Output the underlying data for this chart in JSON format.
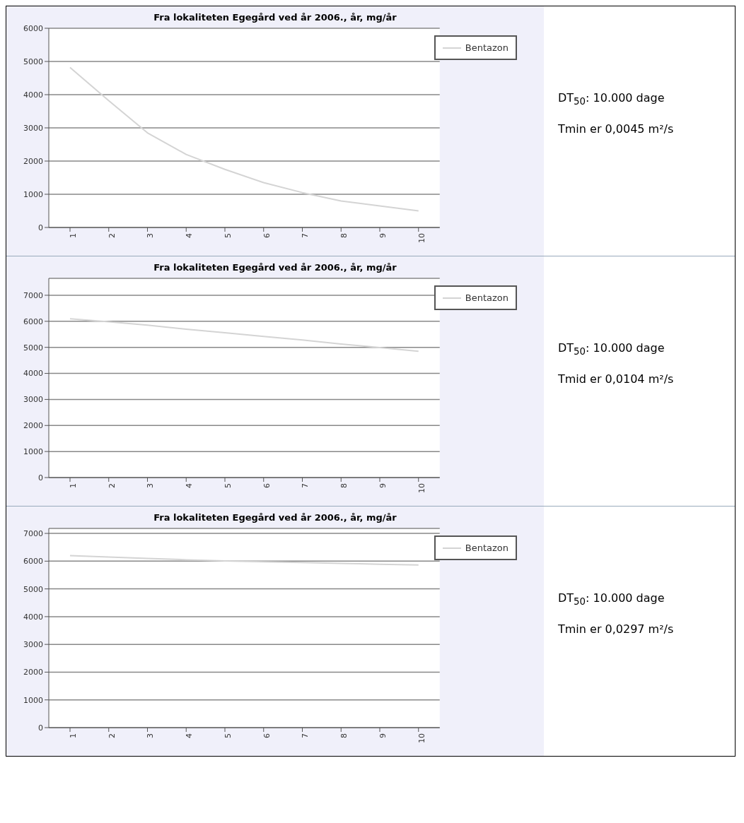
{
  "chart_data": [
    {
      "type": "line",
      "title": "Fra lokaliteten Egegård ved år 2006., år, mg/år",
      "categories": [
        "1",
        "2",
        "3",
        "4",
        "5",
        "6",
        "7",
        "8",
        "9",
        "10"
      ],
      "series": [
        {
          "name": "Bentazon",
          "color": "#d4d4d4",
          "values": [
            4820,
            3820,
            2850,
            2200,
            1750,
            1350,
            1050,
            800,
            650,
            500
          ]
        }
      ],
      "ylim": [
        0,
        6000
      ],
      "yticks": [
        0,
        1000,
        2000,
        3000,
        4000,
        5000,
        6000
      ],
      "grid": "y",
      "legend": "top right",
      "marker": "none",
      "line_style": "solid",
      "annotations": [
        "DT$_{50}$: 10.000 dage",
        "Tmin er 0,0045 m²/s"
      ]
    },
    {
      "type": "line",
      "title": "Fra lokaliteten Egegård ved år 2006., år, mg/år",
      "categories": [
        "1",
        "2",
        "3",
        "4",
        "5",
        "6",
        "7",
        "8",
        "9",
        "10"
      ],
      "series": [
        {
          "name": "Bentazon",
          "color": "#d4d4d4",
          "values": [
            6100,
            5980,
            5850,
            5700,
            5560,
            5420,
            5280,
            5130,
            4990,
            4850
          ]
        }
      ],
      "ylim": [
        0,
        7650
      ],
      "yticks": [
        0,
        1000,
        2000,
        3000,
        4000,
        5000,
        6000,
        7000
      ],
      "grid": "y",
      "legend": "top right",
      "marker": "none",
      "line_style": "solid",
      "annotations": [
        "DT$_{50}$: 10.000 dage",
        "Tmid er 0,0104 m²/s"
      ]
    },
    {
      "type": "line",
      "title": "Fra lokaliteten Egegård ved år 2006., år, mg/år",
      "categories": [
        "1",
        "2",
        "3",
        "4",
        "5",
        "6",
        "7",
        "8",
        "9",
        "10"
      ],
      "series": [
        {
          "name": "Bentazon",
          "color": "#d4d4d4",
          "values": [
            6200,
            6150,
            6100,
            6050,
            6010,
            5980,
            5950,
            5920,
            5890,
            5860
          ]
        }
      ],
      "ylim": [
        0,
        7180
      ],
      "yticks": [
        0,
        1000,
        2000,
        3000,
        4000,
        5000,
        6000,
        7000
      ],
      "grid": "y",
      "legend": "top right",
      "marker": "none",
      "line_style": "solid",
      "annotations": [
        "DT$_{50}$: 10.000 dage",
        "Tmin er 0,0297 m²/s"
      ]
    }
  ]
}
